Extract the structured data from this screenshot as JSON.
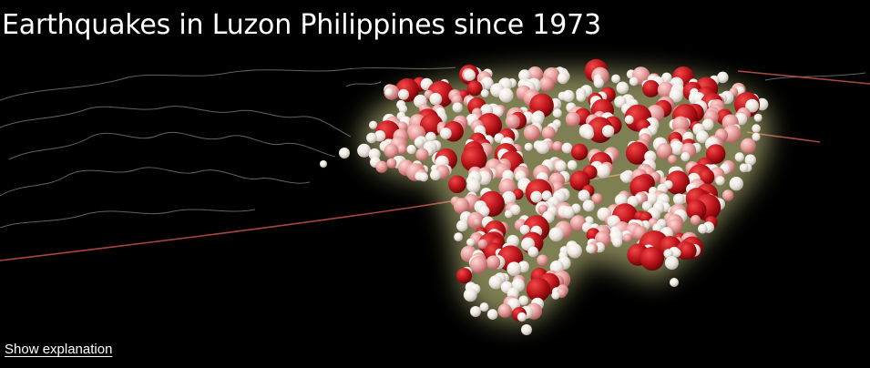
{
  "title": "Earthquakes in Luzon Philippines since 1973",
  "explanation_link": "Show explanation",
  "colors": {
    "background": "#000000",
    "coastline": "#8a8a8a",
    "fault_line": "#c9524a",
    "glow": "#e8e89a",
    "quake_light": "#f4eee6",
    "quake_pink": "#e9a3a1",
    "quake_red": "#b5141a"
  }
}
